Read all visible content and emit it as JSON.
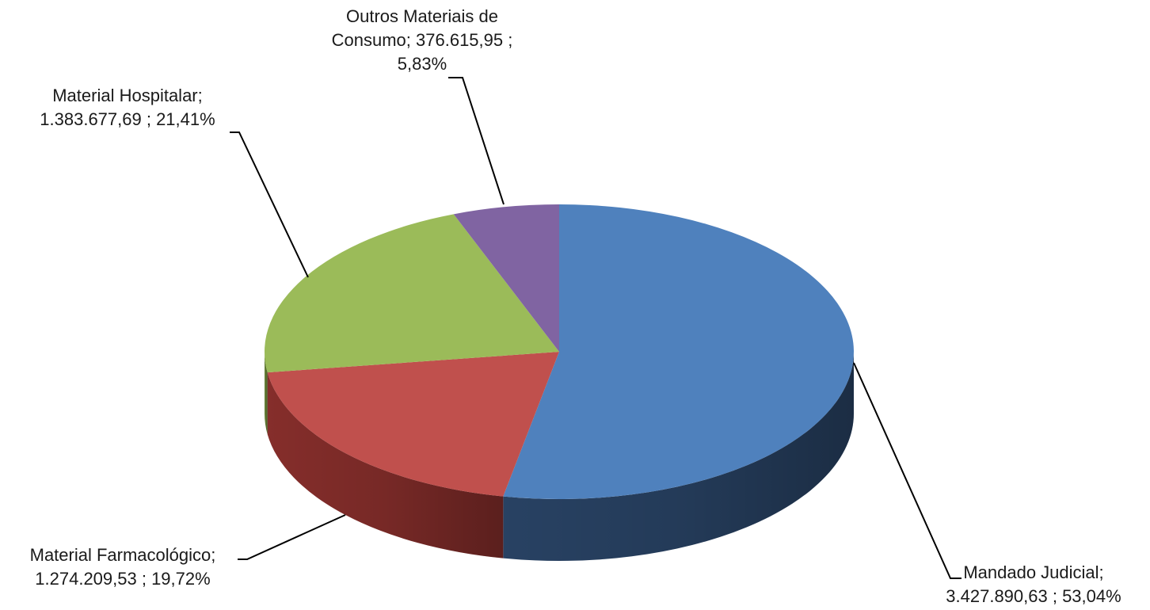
{
  "chart_data": {
    "type": "pie",
    "style": "3d",
    "title": "",
    "legend": "none",
    "slices": [
      {
        "name": "Mandado Judicial",
        "value": 3427890.63,
        "percent": 53.04,
        "value_label": "3.427.890,63",
        "percent_label": "53,04%",
        "color": "#4F81BD",
        "side_color": "#2A4568"
      },
      {
        "name": "Material Farmacológico",
        "value": 1274209.53,
        "percent": 19.72,
        "value_label": "1.274.209,53",
        "percent_label": "19,72%",
        "color": "#C0504D",
        "side_color": "#8C302D"
      },
      {
        "name": "Material Hospitalar",
        "value": 1383677.69,
        "percent": 21.41,
        "value_label": "1.383.677,69",
        "percent_label": "21,41%",
        "color": "#9BBB59",
        "side_color": "#6E8A3C"
      },
      {
        "name": "Outros Materiais de Consumo",
        "value": 376615.95,
        "percent": 5.83,
        "value_label": "376.615,95",
        "percent_label": "5,83%",
        "color": "#8064A2",
        "side_color": "#5B4578"
      }
    ]
  },
  "labels": {
    "outros": {
      "line1": "Outros Materiais de",
      "line2": "Consumo;  376.615,95 ;",
      "line3": "5,83%"
    },
    "hospitalar": {
      "line1": "Material Hospitalar;",
      "line2": "1.383.677,69 ; 21,41%"
    },
    "farmaco": {
      "line1": "Material Farmacológico;",
      "line2": "1.274.209,53 ; 19,72%"
    },
    "mandado": {
      "line1": "Mandado Judicial;",
      "line2": "3.427.890,63 ; 53,04%"
    }
  }
}
